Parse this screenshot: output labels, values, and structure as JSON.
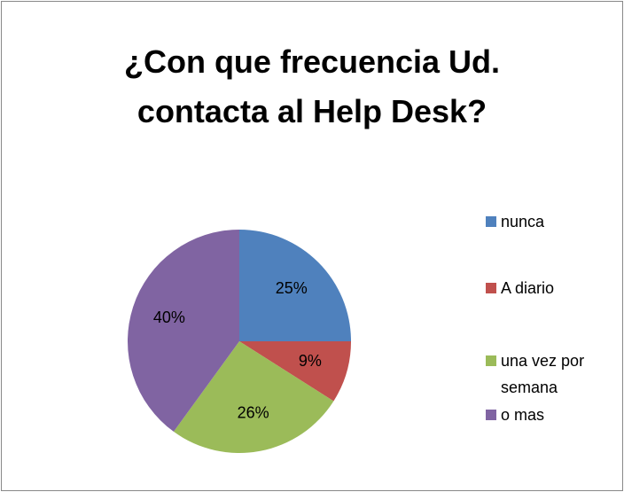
{
  "chart_data": {
    "type": "pie",
    "title": "¿Con que frecuencia Ud. contacta al Help Desk?",
    "categories": [
      "nunca",
      "A diario",
      "una vez por semana",
      "o mas"
    ],
    "values": [
      25,
      9,
      26,
      40
    ],
    "value_labels": [
      "25%",
      "9%",
      "26%",
      "40%"
    ],
    "colors": [
      "#4f81bd",
      "#c0504d",
      "#9bbb59",
      "#8064a2"
    ],
    "legend": "right"
  }
}
